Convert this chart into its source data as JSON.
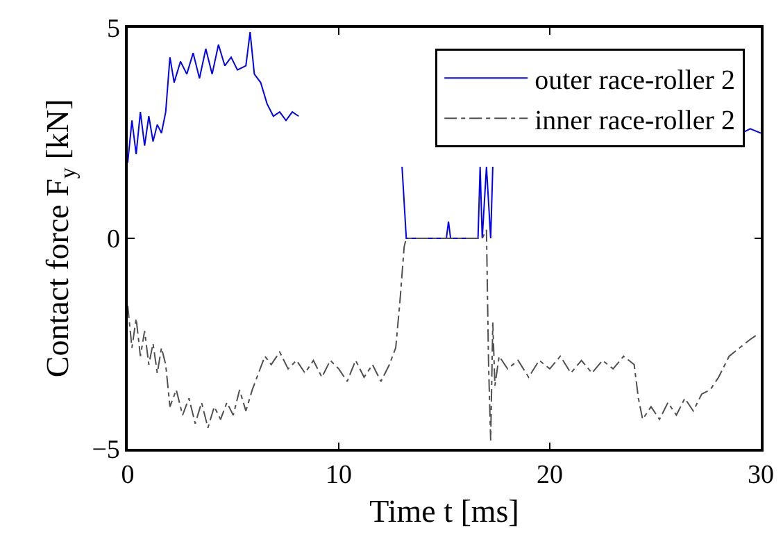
{
  "chart_data": {
    "type": "line",
    "xlabel": "Time t [ms]",
    "ylabel": "Contact force F$_{y}$ [kN]",
    "xlim": [
      0,
      30
    ],
    "ylim": [
      -5,
      5
    ],
    "xticks": [
      0,
      10,
      20,
      30
    ],
    "yticks": [
      {
        "value": -5,
        "label": "−5"
      },
      0,
      5
    ],
    "grid": false,
    "legend": "top right",
    "marker": "none",
    "series": [
      {
        "name": "outer race-roller 2",
        "color": "#0000ff",
        "line_style": "solid",
        "x": [
          0,
          0.2,
          0.4,
          0.6,
          0.8,
          1.0,
          1.2,
          1.4,
          1.6,
          1.8,
          2.0,
          2.2,
          2.5,
          2.8,
          3.1,
          3.4,
          3.7,
          4.0,
          4.3,
          4.6,
          4.9,
          5.2,
          5.6,
          5.8,
          6.0,
          6.3,
          6.6,
          6.9,
          7.2,
          7.5,
          7.8,
          8.1,
          8.2,
          13.0,
          13.2,
          15.1,
          15.2,
          15.3,
          16.6,
          16.7,
          16.8,
          17.0,
          17.2,
          17.3,
          17.4,
          29.1,
          29.5,
          30
        ],
        "values": [
          1.8,
          2.8,
          2.0,
          3.0,
          2.2,
          2.9,
          2.3,
          2.7,
          2.5,
          3.0,
          4.3,
          3.7,
          4.2,
          3.9,
          4.4,
          3.8,
          4.5,
          3.9,
          4.6,
          4.1,
          4.3,
          4.0,
          4.1,
          4.9,
          3.9,
          3.7,
          3.2,
          2.9,
          3.0,
          2.8,
          3.0,
          2.9,
          null,
          1.7,
          0,
          0,
          0.4,
          0,
          0,
          1.7,
          0,
          1.7,
          0,
          1.7,
          null,
          2.5,
          2.6,
          2.5
        ]
      },
      {
        "name": "inner race-roller 2",
        "color": "#505050",
        "line_style": "dashdot",
        "x": [
          0,
          0.2,
          0.4,
          0.6,
          0.8,
          1.0,
          1.2,
          1.4,
          1.6,
          1.8,
          2.0,
          2.3,
          2.6,
          2.9,
          3.2,
          3.5,
          3.8,
          4.1,
          4.4,
          4.7,
          5.0,
          5.3,
          5.6,
          5.9,
          6.2,
          6.5,
          6.8,
          7.2,
          7.6,
          8.0,
          8.4,
          8.8,
          9.2,
          9.6,
          10.0,
          10.4,
          10.8,
          11.2,
          11.6,
          12.0,
          12.4,
          12.7,
          12.9,
          13.1,
          13.2,
          16.8,
          17.0,
          17.1,
          17.2,
          17.3,
          17.4,
          17.6,
          18.0,
          18.5,
          19.0,
          19.5,
          20.0,
          20.5,
          21.0,
          21.5,
          22.0,
          22.5,
          23.0,
          23.5,
          24.0,
          24.2,
          24.4,
          24.8,
          25.2,
          25.6,
          26.0,
          26.4,
          26.8,
          27.2,
          27.6,
          28.0,
          28.5,
          29.0,
          29.5,
          29.8
        ],
        "values": [
          -1.6,
          -2.6,
          -1.9,
          -2.8,
          -2.2,
          -3.0,
          -2.5,
          -3.2,
          -2.6,
          -3.0,
          -4.0,
          -3.6,
          -4.2,
          -3.8,
          -4.4,
          -3.9,
          -4.5,
          -4.0,
          -4.3,
          -3.9,
          -4.2,
          -3.6,
          -4.1,
          -3.6,
          -3.2,
          -2.8,
          -3.0,
          -2.7,
          -3.1,
          -2.9,
          -3.2,
          -2.9,
          -3.3,
          -2.9,
          -3.1,
          -3.4,
          -2.9,
          -3.3,
          -3.0,
          -3.4,
          -3.0,
          -2.6,
          -1.5,
          -0.2,
          0,
          0,
          0.2,
          -3.0,
          -4.8,
          -2.0,
          -3.5,
          -2.8,
          -3.1,
          -2.9,
          -3.3,
          -2.9,
          -3.1,
          -2.8,
          -3.2,
          -2.9,
          -3.2,
          -2.9,
          -3.1,
          -2.8,
          -3.0,
          -3.8,
          -4.3,
          -4.0,
          -4.3,
          -3.9,
          -4.2,
          -3.8,
          -4.1,
          -3.7,
          -3.6,
          -3.3,
          -2.8,
          -2.6,
          -2.4,
          -2.3
        ]
      }
    ]
  }
}
